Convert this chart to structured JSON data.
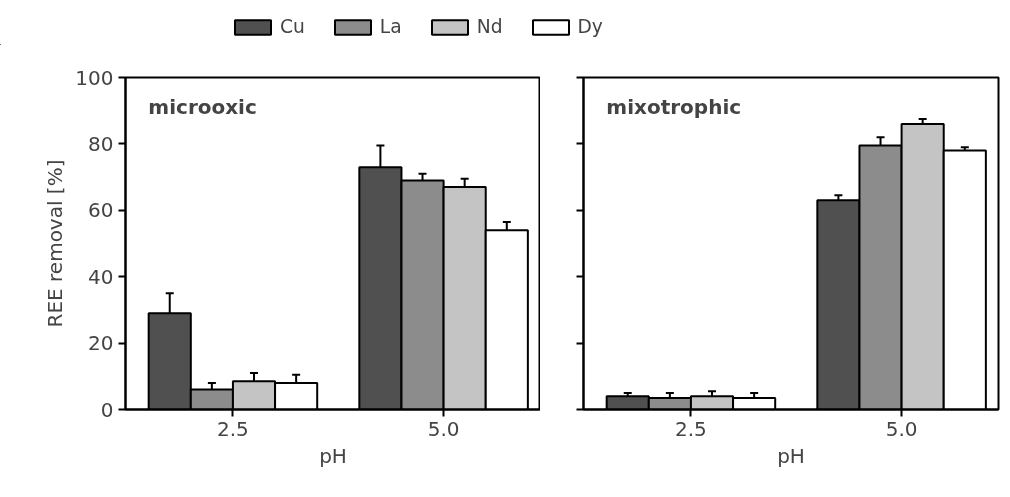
{
  "chart_data": [
    {
      "type": "bar",
      "title": "microoxic",
      "xlabel": "pH",
      "ylabel": "REE removal [%]",
      "categories": [
        "2.5",
        "5.0"
      ],
      "ylim": [
        0,
        100
      ],
      "yticks": [
        0,
        20,
        40,
        60,
        80,
        100
      ],
      "legend": "top",
      "grid": false,
      "series": [
        {
          "name": "Cu",
          "color": "#505050",
          "values": [
            29,
            73
          ],
          "errors": [
            6,
            6.5
          ]
        },
        {
          "name": "La",
          "color": "#8c8c8c",
          "values": [
            6,
            69
          ],
          "errors": [
            2,
            2
          ]
        },
        {
          "name": "Nd",
          "color": "#c4c4c4",
          "values": [
            8.5,
            67
          ],
          "errors": [
            2.5,
            2.5
          ]
        },
        {
          "name": "Dy",
          "color": "#ffffff",
          "values": [
            8,
            54
          ],
          "errors": [
            2.5,
            2.5
          ]
        }
      ]
    },
    {
      "type": "bar",
      "title": "mixotrophic",
      "xlabel": "pH",
      "categories": [
        "2.5",
        "5.0"
      ],
      "ylim": [
        0,
        100
      ],
      "yticks": [
        0,
        20,
        40,
        60,
        80,
        100
      ],
      "tick_labels": "x",
      "legend": false,
      "grid": false,
      "series": [
        {
          "color": "#505050",
          "values": [
            4,
            63
          ],
          "errors": [
            1,
            1.5
          ]
        },
        {
          "color": "#8c8c8c",
          "values": [
            3.5,
            79.5
          ],
          "errors": [
            1.5,
            2.5
          ]
        },
        {
          "color": "#c4c4c4",
          "values": [
            4,
            86
          ],
          "errors": [
            1.5,
            1.5
          ]
        },
        {
          "color": "#ffffff",
          "values": [
            3.5,
            78
          ],
          "errors": [
            1.5,
            1
          ]
        }
      ]
    }
  ]
}
